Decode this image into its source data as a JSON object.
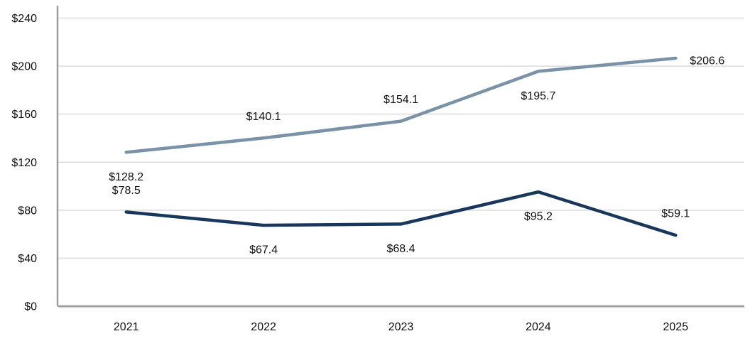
{
  "chart_data": {
    "type": "line",
    "title": "",
    "xlabel": "",
    "ylabel": "",
    "categories": [
      "2021",
      "2022",
      "2023",
      "2024",
      "2025"
    ],
    "series": [
      {
        "name": "upper-series",
        "color": "#7A92A8",
        "values": [
          128.2,
          140.1,
          154.1,
          195.7,
          206.6
        ],
        "labels": [
          "$128.2",
          "$140.1",
          "$154.1",
          "$195.7",
          "$206.6"
        ]
      },
      {
        "name": "lower-series",
        "color": "#17375D",
        "values": [
          78.5,
          67.4,
          68.4,
          95.2,
          59.1
        ],
        "labels": [
          "$78.5",
          "$67.4",
          "$68.4",
          "$95.2",
          "$59.1"
        ]
      }
    ],
    "y_axis": {
      "tick_labels": [
        "$240",
        "$200",
        "$160",
        "$120",
        "$80",
        "$40",
        "$0"
      ],
      "tick_values": [
        240,
        200,
        160,
        120,
        80,
        40,
        0
      ],
      "min": 0,
      "max": 240
    },
    "grid": true,
    "legend_position": "none",
    "colors": {
      "gridline": "#DBDBDB",
      "axis": "#9B9B9B",
      "text": "#111111",
      "background": "#FFFFFF"
    }
  }
}
